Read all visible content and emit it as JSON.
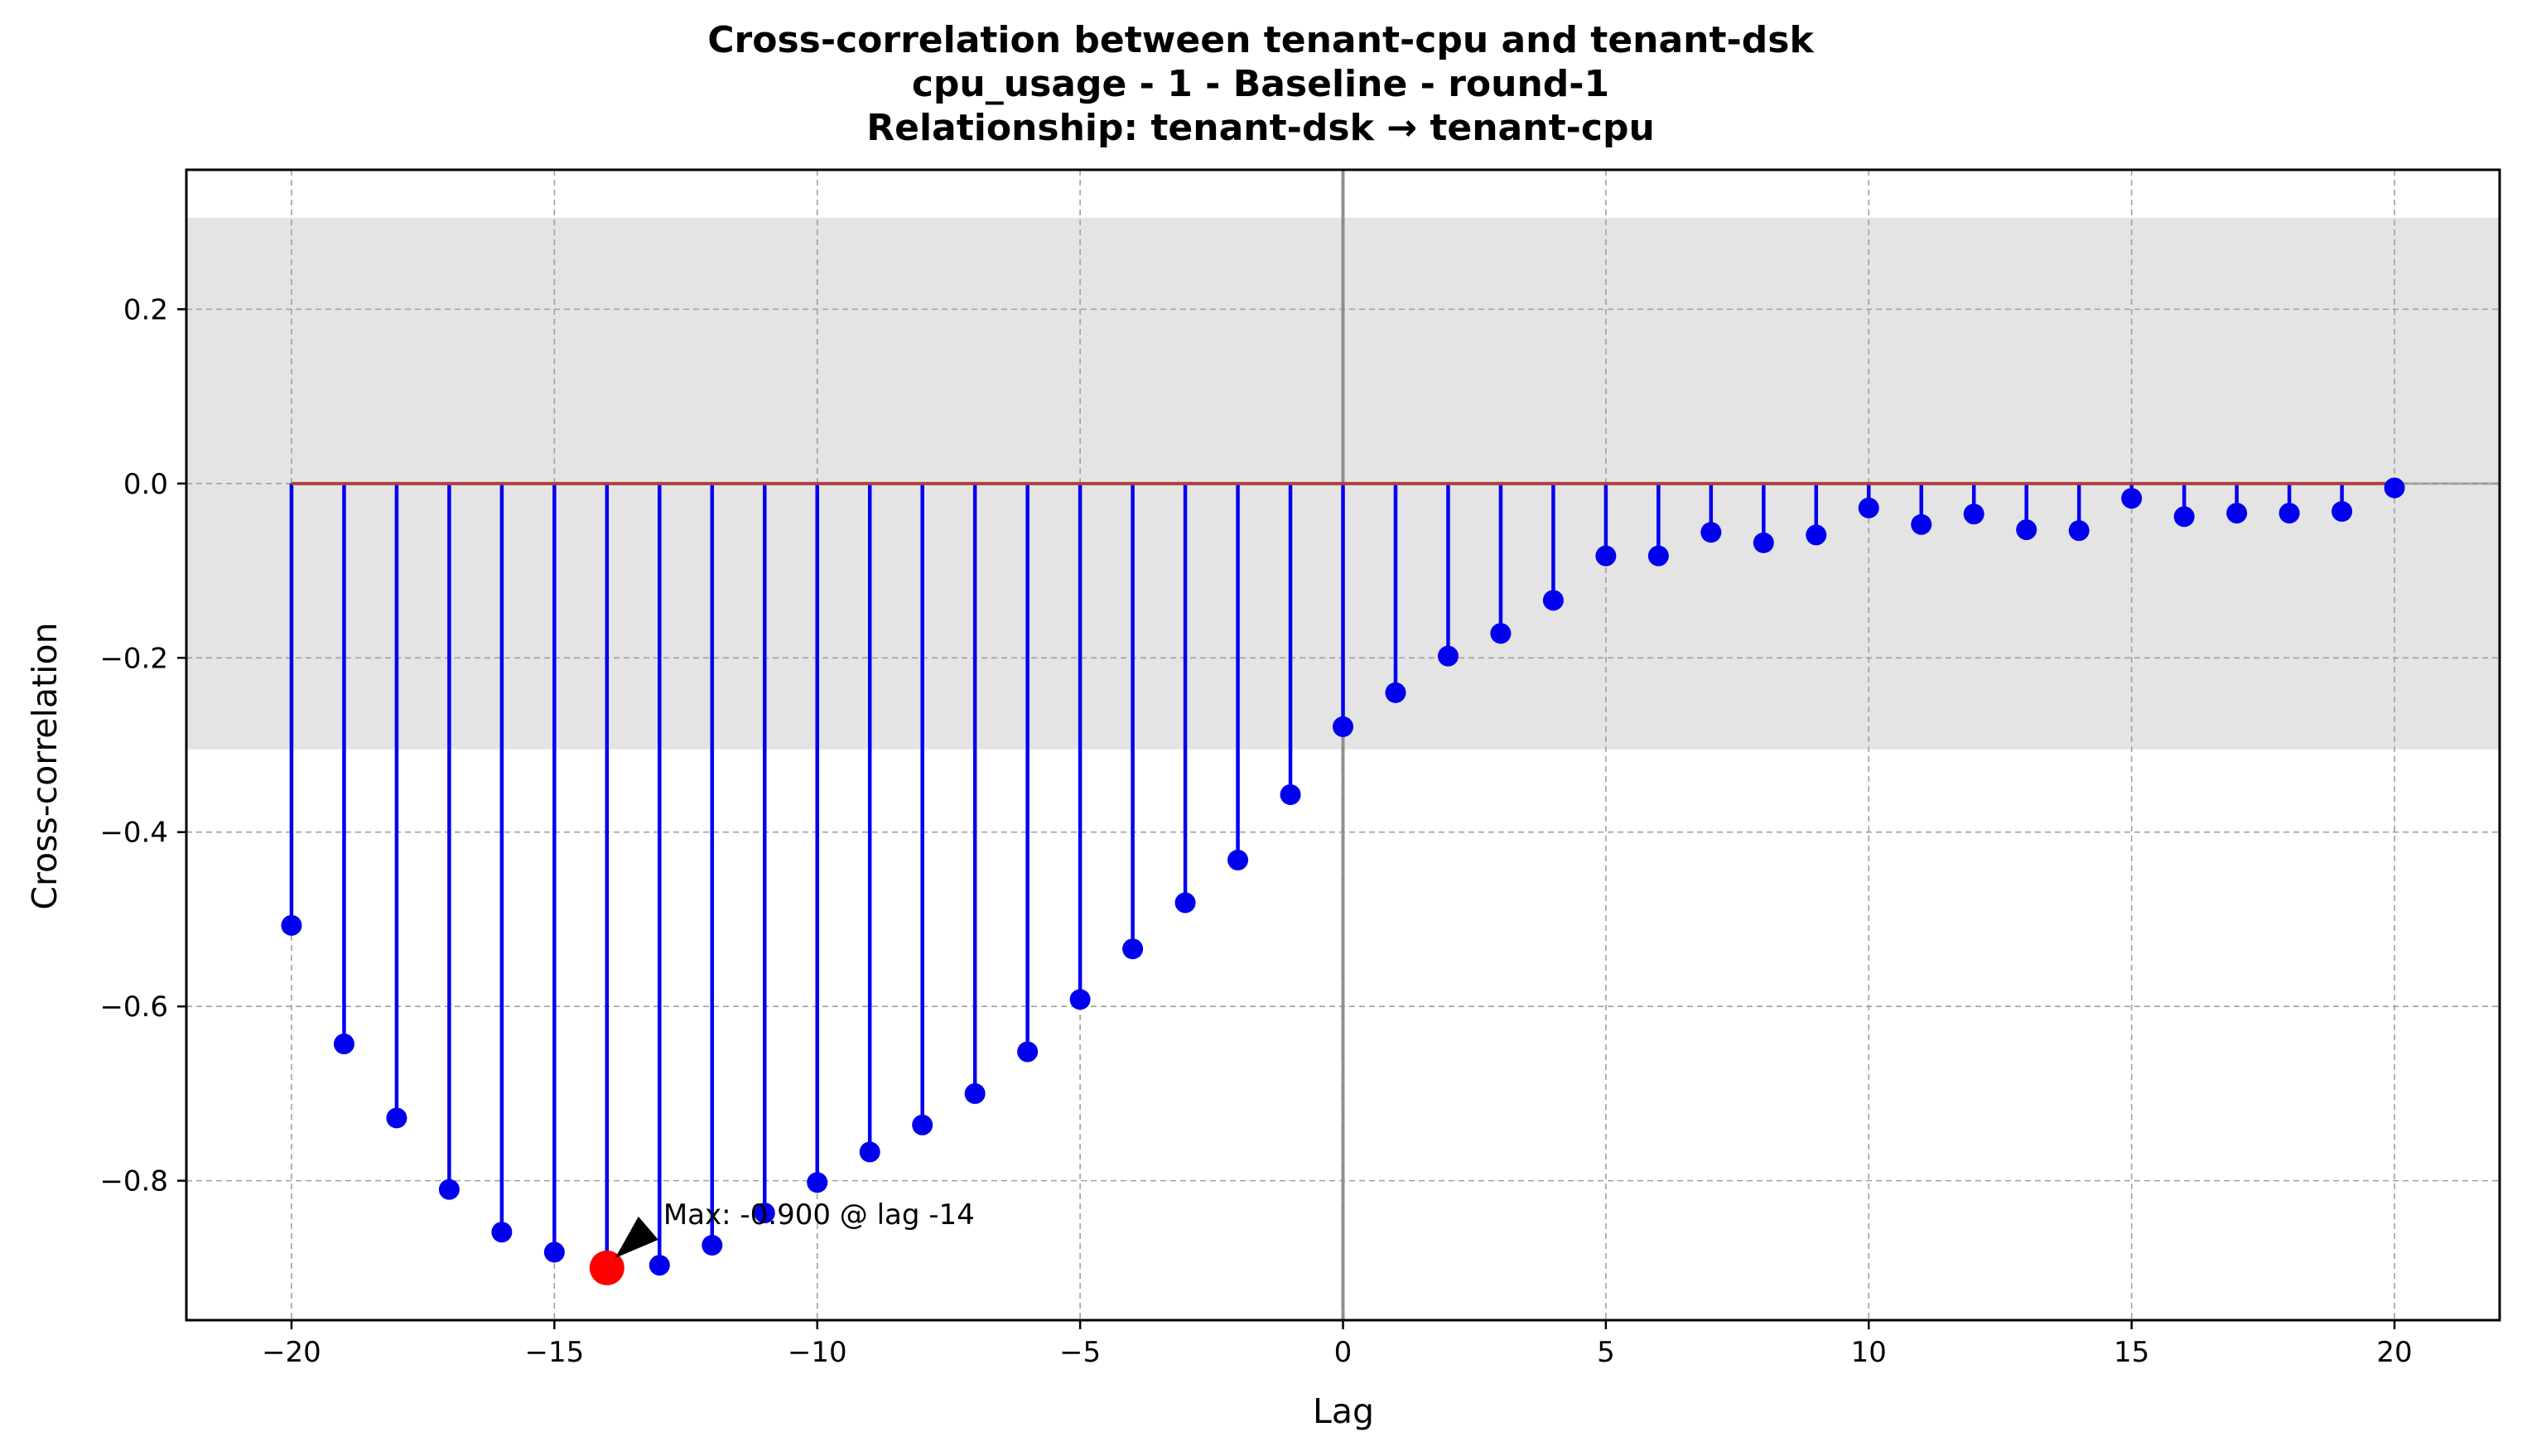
{
  "chart_data": {
    "type": "stem",
    "title_lines": [
      "Cross-correlation between tenant-cpu and tenant-dsk",
      "cpu_usage - 1 - Baseline - round-1",
      "Relationship: tenant-dsk → tenant-cpu"
    ],
    "xlabel": "Lag",
    "ylabel": "Cross-correlation",
    "xlim": [
      -22,
      22
    ],
    "ylim": [
      -0.96,
      0.36
    ],
    "xticks": [
      -20,
      -15,
      -10,
      -5,
      0,
      5,
      10,
      15,
      20
    ],
    "xtick_labels": [
      "−20",
      "−15",
      "−10",
      "−5",
      "0",
      "5",
      "10",
      "15",
      "20"
    ],
    "yticks": [
      -0.8,
      -0.6,
      -0.4,
      -0.2,
      0.0,
      0.2
    ],
    "ytick_labels": [
      "−0.8",
      "−0.6",
      "−0.4",
      "−0.2",
      "0.0",
      "0.2"
    ],
    "grid": true,
    "confidence_band": [
      -0.305,
      0.305
    ],
    "lags": [
      -20,
      -19,
      -18,
      -17,
      -16,
      -15,
      -14,
      -13,
      -12,
      -11,
      -10,
      -9,
      -8,
      -7,
      -6,
      -5,
      -4,
      -3,
      -2,
      -1,
      0,
      1,
      2,
      3,
      4,
      5,
      6,
      7,
      8,
      9,
      10,
      11,
      12,
      13,
      14,
      15,
      16,
      17,
      18,
      19,
      20
    ],
    "values": [
      -0.507,
      -0.643,
      -0.728,
      -0.81,
      -0.859,
      -0.882,
      -0.9,
      -0.897,
      -0.874,
      -0.837,
      -0.802,
      -0.767,
      -0.736,
      -0.7,
      -0.652,
      -0.592,
      -0.534,
      -0.481,
      -0.432,
      -0.357,
      -0.279,
      -0.24,
      -0.198,
      -0.172,
      -0.134,
      -0.083,
      -0.083,
      -0.056,
      -0.068,
      -0.059,
      -0.028,
      -0.047,
      -0.035,
      -0.053,
      -0.054,
      -0.017,
      -0.038,
      -0.034,
      -0.034,
      -0.032,
      -0.005
    ],
    "stem_color": "#0000ee",
    "baseline_color": "#b04040",
    "max_point": {
      "lag": -14,
      "value": -0.9,
      "color": "#ff0000"
    },
    "annotation": {
      "text": "Max: -0.900 @ lag -14",
      "lag": -14,
      "value": -0.9
    }
  }
}
